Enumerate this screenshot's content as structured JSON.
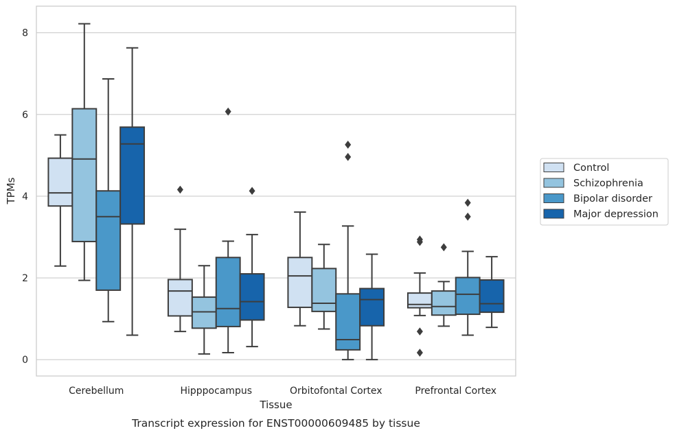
{
  "chart_data": {
    "type": "box",
    "xlabel": "Tissue",
    "ylabel": "TPMs",
    "caption": "Transcript expression for ENST00000609485 by tissue",
    "categories": [
      "Cerebellum",
      "Hipppocampus",
      "Orbitofontal Cortex",
      "Prefrontal Cortex"
    ],
    "ylim": [
      -0.4,
      8.65
    ],
    "yticks": [
      0,
      2,
      4,
      6,
      8
    ],
    "grid": "horizontal",
    "legend_position": "right-center",
    "series": [
      {
        "name": "Control",
        "color": "#d0e1f2",
        "boxes": [
          {
            "whisker_low": 2.29,
            "q1": 3.76,
            "median": 4.08,
            "q3": 4.93,
            "whisker_high": 5.5,
            "outliers": []
          },
          {
            "whisker_low": 0.69,
            "q1": 1.07,
            "median": 1.68,
            "q3": 1.96,
            "whisker_high": 3.19,
            "outliers": [
              4.16
            ]
          },
          {
            "whisker_low": 0.83,
            "q1": 1.28,
            "median": 2.05,
            "q3": 2.5,
            "whisker_high": 3.61,
            "outliers": []
          },
          {
            "whisker_low": 1.08,
            "q1": 1.27,
            "median": 1.35,
            "q3": 1.63,
            "whisker_high": 2.12,
            "outliers": [
              0.69,
              0.17,
              2.88,
              2.94
            ]
          }
        ]
      },
      {
        "name": "Schizophrenia",
        "color": "#94c4df",
        "boxes": [
          {
            "whisker_low": 1.94,
            "q1": 2.89,
            "median": 4.91,
            "q3": 6.14,
            "whisker_high": 8.22,
            "outliers": []
          },
          {
            "whisker_low": 0.14,
            "q1": 0.77,
            "median": 1.17,
            "q3": 1.53,
            "whisker_high": 2.3,
            "outliers": []
          },
          {
            "whisker_low": 0.75,
            "q1": 1.18,
            "median": 1.38,
            "q3": 2.23,
            "whisker_high": 2.82,
            "outliers": []
          },
          {
            "whisker_low": 0.82,
            "q1": 1.09,
            "median": 1.3,
            "q3": 1.68,
            "whisker_high": 1.91,
            "outliers": [
              2.75
            ]
          }
        ]
      },
      {
        "name": "Bipolar disorder",
        "color": "#4a98c9",
        "boxes": [
          {
            "whisker_low": 0.93,
            "q1": 1.7,
            "median": 3.5,
            "q3": 4.13,
            "whisker_high": 6.87,
            "outliers": []
          },
          {
            "whisker_low": 0.17,
            "q1": 0.81,
            "median": 1.25,
            "q3": 2.5,
            "whisker_high": 2.9,
            "outliers": [
              6.07
            ]
          },
          {
            "whisker_low": 0.0,
            "q1": 0.24,
            "median": 0.49,
            "q3": 1.61,
            "whisker_high": 3.27,
            "outliers": [
              5.26,
              4.96
            ]
          },
          {
            "whisker_low": 0.6,
            "q1": 1.11,
            "median": 1.6,
            "q3": 2.01,
            "whisker_high": 2.65,
            "outliers": [
              3.84,
              3.5
            ]
          }
        ]
      },
      {
        "name": "Major depression",
        "color": "#1764ab",
        "boxes": [
          {
            "whisker_low": 0.6,
            "q1": 3.32,
            "median": 5.28,
            "q3": 5.69,
            "whisker_high": 7.63,
            "outliers": []
          },
          {
            "whisker_low": 0.32,
            "q1": 0.97,
            "median": 1.42,
            "q3": 2.1,
            "whisker_high": 3.06,
            "outliers": [
              4.13
            ]
          },
          {
            "whisker_low": 0.0,
            "q1": 0.83,
            "median": 1.47,
            "q3": 1.74,
            "whisker_high": 2.58,
            "outliers": []
          },
          {
            "whisker_low": 0.79,
            "q1": 1.16,
            "median": 1.37,
            "q3": 1.95,
            "whisker_high": 2.52,
            "outliers": []
          }
        ]
      }
    ]
  }
}
